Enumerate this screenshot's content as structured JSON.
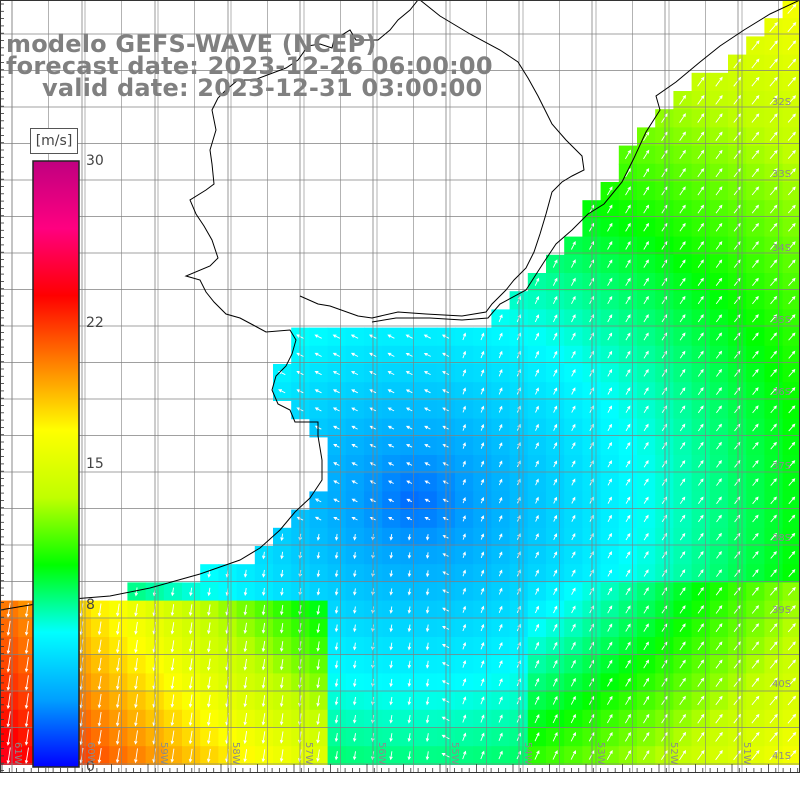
{
  "header": {
    "line1": "modelo GEFS-WAVE (NCEP)",
    "line2": "forecast date: 2023-12-26 06:00:00",
    "line3": "valid date: 2023-12-31 03:00:00"
  },
  "colorbar": {
    "unit": "[m/s]",
    "ticks": [
      "30",
      "22",
      "15",
      "8",
      "0"
    ],
    "tick_values": [
      30,
      22,
      15,
      8,
      0
    ],
    "min": 0,
    "max": 30,
    "stops": [
      "#0000ff",
      "#00a0ff",
      "#00ffff",
      "#00ff00",
      "#c0ff00",
      "#ffff00",
      "#ff8000",
      "#ff0000",
      "#ff0080",
      "#c00080"
    ]
  },
  "axes": {
    "lat_labels": [
      "32S",
      "33S",
      "34S",
      "35S",
      "36S",
      "37S",
      "38S",
      "39S",
      "40S",
      "41S"
    ],
    "lon_labels": [
      "61W",
      "60W",
      "59W",
      "58W",
      "57W",
      "56W",
      "55W",
      "54W",
      "53W",
      "52W",
      "51W"
    ]
  },
  "colors": {
    "land": "#ffffff",
    "grid": "#808080",
    "coast": "#000000",
    "arrows": "#ffffff",
    "title": "#808080"
  }
}
